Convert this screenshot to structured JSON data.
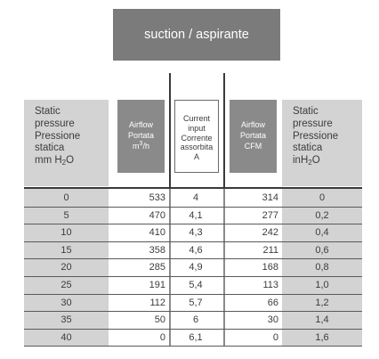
{
  "title": "suction / aspirante",
  "headers": {
    "static_pressure_mm": [
      "Static",
      "pressure",
      "Pressione",
      "statica"
    ],
    "static_pressure_mm_unit": {
      "base": "mm H",
      "sub": "2",
      "tail": "O"
    },
    "airflow_m3h": [
      "Airflow",
      "Portata"
    ],
    "airflow_m3h_unit": {
      "base": "m",
      "sup": "3",
      "tail": "/h"
    },
    "current": [
      "Current",
      "input",
      "Corrente",
      "assorbita",
      "A"
    ],
    "airflow_cfm": [
      "Airflow",
      "Portata",
      "CFM"
    ],
    "static_pressure_in": [
      "Static",
      "pressure",
      "Pressione",
      "statica"
    ],
    "static_pressure_in_unit": {
      "base": "inH",
      "sub": "2",
      "tail": "O"
    }
  },
  "rows": [
    [
      "0",
      "533",
      "4",
      "314",
      "0"
    ],
    [
      "5",
      "470",
      "4,1",
      "277",
      "0,2"
    ],
    [
      "10",
      "410",
      "4,3",
      "242",
      "0,4"
    ],
    [
      "15",
      "358",
      "4,6",
      "211",
      "0,6"
    ],
    [
      "20",
      "285",
      "4,9",
      "168",
      "0,8"
    ],
    [
      "25",
      "191",
      "5,4",
      "113",
      "1,0"
    ],
    [
      "30",
      "112",
      "5,7",
      "66",
      "1,2"
    ],
    [
      "35",
      "50",
      "6",
      "30",
      "1,4"
    ],
    [
      "40",
      "0",
      "6,1",
      "0",
      "1,6"
    ]
  ]
}
